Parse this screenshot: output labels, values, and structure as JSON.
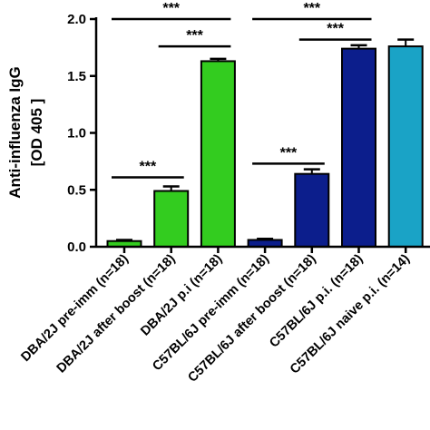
{
  "chart_data": {
    "type": "bar",
    "ylabel_line1": "Anti-influenza IgG",
    "ylabel_line2": "[OD 405 ]",
    "ylim": [
      0,
      2.0
    ],
    "yticks": [
      0.0,
      0.5,
      1.0,
      1.5,
      2.0
    ],
    "ytick_labels": [
      "0.0",
      "0.5",
      "1.0",
      "1.5",
      "2.0"
    ],
    "categories": [
      "DBA/2J pre-imm (n=18)",
      "DBA/2J after boost (n=18)",
      "DBA/2J p.i (n=18)",
      "C57BL/6J pre-imm (n=18)",
      "C57BL/6J after boost (n=18)",
      "C57BL/6J p.i. (n=18)",
      "C57BL/6J naive p.i. (n=14)"
    ],
    "values": [
      0.05,
      0.49,
      1.63,
      0.06,
      0.64,
      1.74,
      1.76
    ],
    "errors": [
      0.01,
      0.04,
      0.02,
      0.01,
      0.04,
      0.03,
      0.06
    ],
    "bar_colors": [
      "#33cc1f",
      "#33cc1f",
      "#33cc1f",
      "#0c1e8c",
      "#0c1e8c",
      "#0c1e8c",
      "#1aa3c6"
    ],
    "significance": [
      {
        "from": 0,
        "to": 1,
        "label": "***",
        "y": 0.61
      },
      {
        "from": 1,
        "to": 2,
        "label": "***",
        "y": 1.76
      },
      {
        "from": 0,
        "to": 2,
        "label": "***",
        "y": 2.0
      },
      {
        "from": 3,
        "to": 4,
        "label": "***",
        "y": 0.73
      },
      {
        "from": 4,
        "to": 5,
        "label": "***",
        "y": 1.82
      },
      {
        "from": 3,
        "to": 5,
        "label": "***",
        "y": 2.0
      }
    ]
  }
}
